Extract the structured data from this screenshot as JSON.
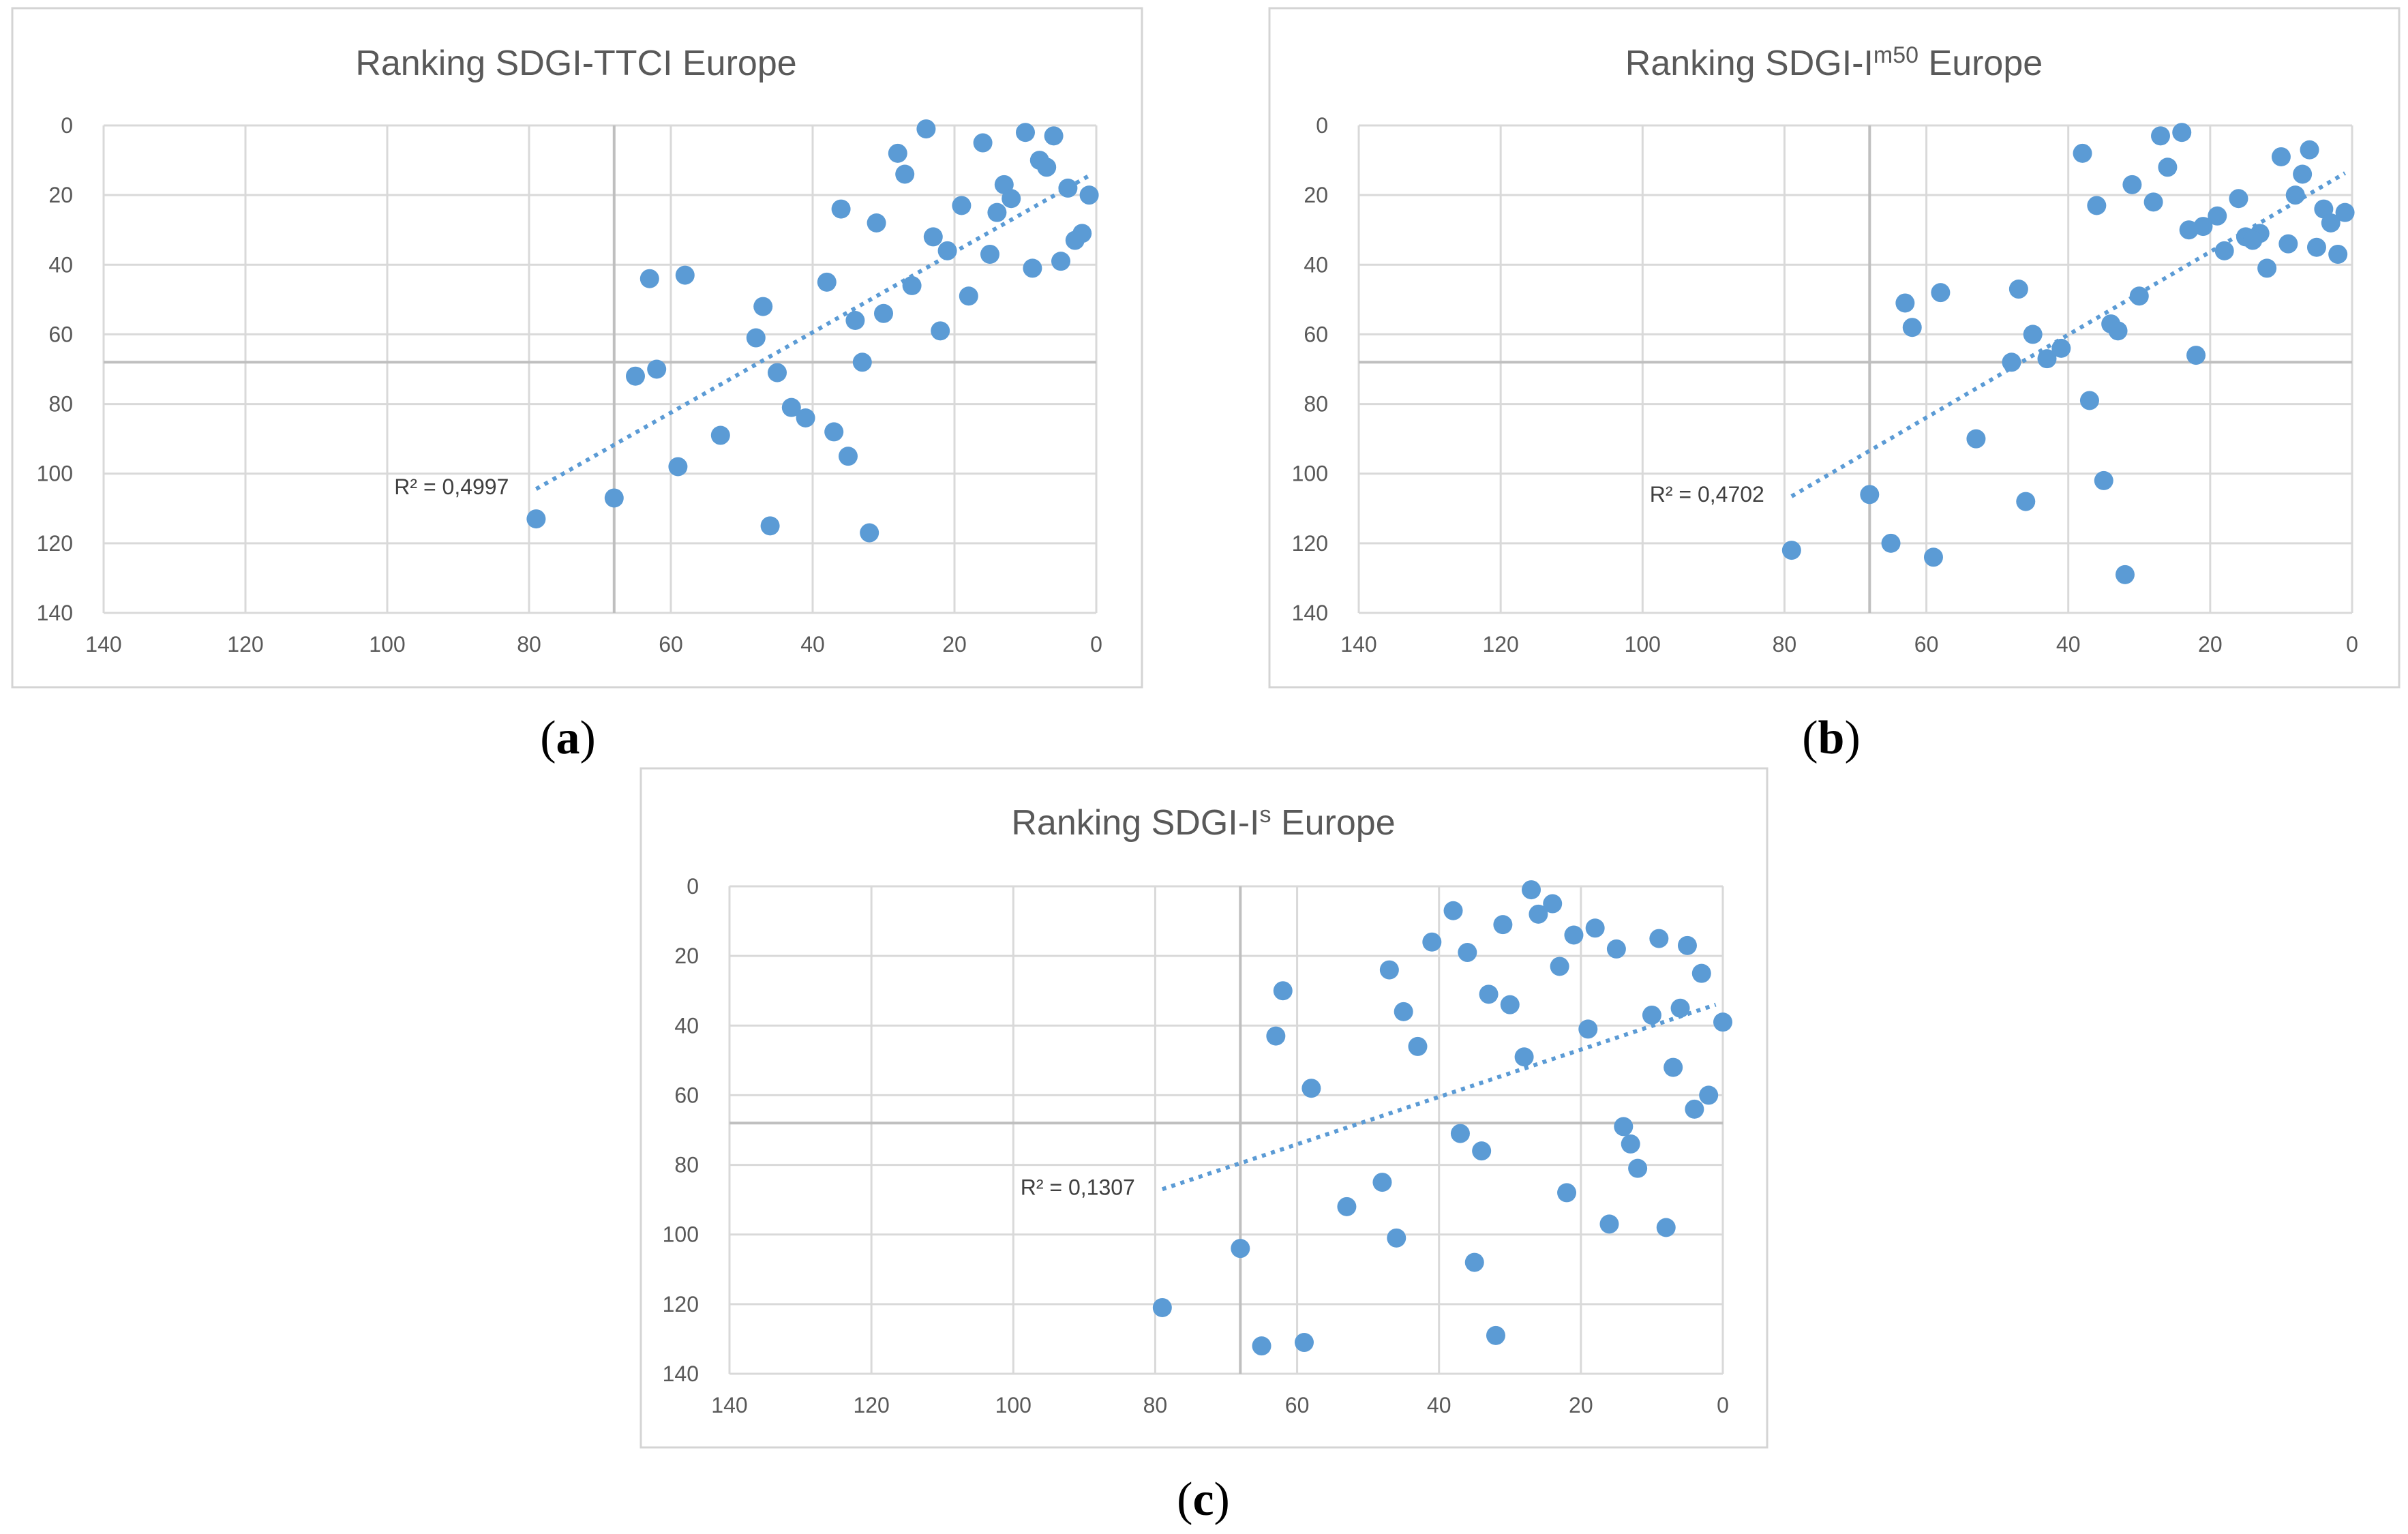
{
  "colors": {
    "marker": "#5b9bd5",
    "trend": "#5b9bd5",
    "frame": "#d4d4d4",
    "grid": "#d9d9d9",
    "refline": "#bfbfbf"
  },
  "chart_data": [
    {
      "id": "a",
      "type": "scatter",
      "panel_label": "a",
      "title_main": "Ranking SDGI-TTCI Europe",
      "title_base": "Ranking SDGI-TTCI Europe",
      "title_sup": "",
      "title_suffix": "",
      "x_reversed": true,
      "y_reversed": true,
      "xlim": [
        0,
        140
      ],
      "ylim": [
        0,
        140
      ],
      "xticks": [
        140,
        120,
        100,
        80,
        60,
        40,
        20,
        0
      ],
      "yticks": [
        0,
        20,
        40,
        60,
        80,
        100,
        120,
        140
      ],
      "reference_lines": {
        "x": 68,
        "y": 68
      },
      "trendline": {
        "type": "linear",
        "x_from": 79,
        "x_to": 1,
        "r2_label": "R² = 0,4997"
      },
      "points": [
        [
          24,
          1
        ],
        [
          10,
          2
        ],
        [
          6,
          3
        ],
        [
          16,
          5
        ],
        [
          28,
          8
        ],
        [
          8,
          10
        ],
        [
          7,
          12
        ],
        [
          27,
          14
        ],
        [
          13,
          17
        ],
        [
          4,
          18
        ],
        [
          1,
          20
        ],
        [
          12,
          21
        ],
        [
          19,
          23
        ],
        [
          36,
          24
        ],
        [
          14,
          25
        ],
        [
          31,
          28
        ],
        [
          23,
          32
        ],
        [
          2,
          31
        ],
        [
          3,
          33
        ],
        [
          21,
          36
        ],
        [
          15,
          37
        ],
        [
          5,
          39
        ],
        [
          9,
          41
        ],
        [
          58,
          43
        ],
        [
          63,
          44
        ],
        [
          38,
          45
        ],
        [
          26,
          46
        ],
        [
          18,
          49
        ],
        [
          47,
          52
        ],
        [
          30,
          54
        ],
        [
          34,
          56
        ],
        [
          22,
          59
        ],
        [
          48,
          61
        ],
        [
          33,
          68
        ],
        [
          62,
          70
        ],
        [
          45,
          71
        ],
        [
          65,
          72
        ],
        [
          43,
          81
        ],
        [
          41,
          84
        ],
        [
          37,
          88
        ],
        [
          53,
          89
        ],
        [
          35,
          95
        ],
        [
          59,
          98
        ],
        [
          68,
          107
        ],
        [
          79,
          113
        ],
        [
          46,
          115
        ],
        [
          32,
          117
        ]
      ]
    },
    {
      "id": "b",
      "type": "scatter",
      "panel_label": "b",
      "title_main": "",
      "title_base": "Ranking SDGI-I",
      "title_sup": "m50",
      "title_suffix": " Europe",
      "x_reversed": true,
      "y_reversed": true,
      "xlim": [
        0,
        140
      ],
      "ylim": [
        0,
        140
      ],
      "xticks": [
        140,
        120,
        100,
        80,
        60,
        40,
        20,
        0
      ],
      "yticks": [
        0,
        20,
        40,
        60,
        80,
        100,
        120,
        140
      ],
      "reference_lines": {
        "x": 68,
        "y": 68
      },
      "trendline": {
        "type": "linear",
        "x_from": 79,
        "x_to": 1,
        "r2_label": "R² = 0,4702"
      },
      "points": [
        [
          24,
          2
        ],
        [
          27,
          3
        ],
        [
          6,
          7
        ],
        [
          38,
          8
        ],
        [
          10,
          9
        ],
        [
          26,
          12
        ],
        [
          7,
          14
        ],
        [
          31,
          17
        ],
        [
          8,
          20
        ],
        [
          16,
          21
        ],
        [
          28,
          22
        ],
        [
          36,
          23
        ],
        [
          4,
          24
        ],
        [
          1,
          25
        ],
        [
          19,
          26
        ],
        [
          3,
          28
        ],
        [
          21,
          29
        ],
        [
          23,
          30
        ],
        [
          13,
          31
        ],
        [
          15,
          32
        ],
        [
          14,
          33
        ],
        [
          9,
          34
        ],
        [
          5,
          35
        ],
        [
          18,
          36
        ],
        [
          2,
          37
        ],
        [
          12,
          41
        ],
        [
          47,
          47
        ],
        [
          58,
          48
        ],
        [
          30,
          49
        ],
        [
          63,
          51
        ],
        [
          34,
          57
        ],
        [
          62,
          58
        ],
        [
          33,
          59
        ],
        [
          45,
          60
        ],
        [
          41,
          64
        ],
        [
          22,
          66
        ],
        [
          43,
          67
        ],
        [
          48,
          68
        ],
        [
          37,
          79
        ],
        [
          53,
          90
        ],
        [
          35,
          102
        ],
        [
          68,
          106
        ],
        [
          46,
          108
        ],
        [
          65,
          120
        ],
        [
          79,
          122
        ],
        [
          59,
          124
        ],
        [
          32,
          129
        ]
      ]
    },
    {
      "id": "c",
      "type": "scatter",
      "panel_label": "c",
      "title_main": "",
      "title_base": "Ranking SDGI-I",
      "title_sup": "s",
      "title_suffix": " Europe",
      "x_reversed": true,
      "y_reversed": true,
      "xlim": [
        0,
        140
      ],
      "ylim": [
        0,
        140
      ],
      "xticks": [
        140,
        120,
        100,
        80,
        60,
        40,
        20,
        0
      ],
      "yticks": [
        0,
        20,
        40,
        60,
        80,
        100,
        120,
        140
      ],
      "reference_lines": {
        "x": 68,
        "y": 68
      },
      "trendline": {
        "type": "linear",
        "x_from": 79,
        "x_to": 1,
        "r2_label": "R² = 0,1307"
      },
      "points": [
        [
          27,
          1
        ],
        [
          24,
          5
        ],
        [
          38,
          7
        ],
        [
          26,
          8
        ],
        [
          31,
          11
        ],
        [
          18,
          12
        ],
        [
          21,
          14
        ],
        [
          9,
          15
        ],
        [
          41,
          16
        ],
        [
          5,
          17
        ],
        [
          15,
          18
        ],
        [
          36,
          19
        ],
        [
          23,
          23
        ],
        [
          47,
          24
        ],
        [
          3,
          25
        ],
        [
          62,
          30
        ],
        [
          33,
          31
        ],
        [
          30,
          34
        ],
        [
          6,
          35
        ],
        [
          45,
          36
        ],
        [
          10,
          37
        ],
        [
          0,
          39
        ],
        [
          19,
          41
        ],
        [
          63,
          43
        ],
        [
          43,
          46
        ],
        [
          28,
          49
        ],
        [
          7,
          52
        ],
        [
          58,
          58
        ],
        [
          2,
          60
        ],
        [
          4,
          64
        ],
        [
          14,
          69
        ],
        [
          37,
          71
        ],
        [
          13,
          74
        ],
        [
          34,
          76
        ],
        [
          12,
          81
        ],
        [
          48,
          85
        ],
        [
          22,
          88
        ],
        [
          53,
          92
        ],
        [
          16,
          97
        ],
        [
          8,
          98
        ],
        [
          46,
          101
        ],
        [
          68,
          104
        ],
        [
          35,
          108
        ],
        [
          79,
          121
        ],
        [
          32,
          129
        ],
        [
          59,
          131
        ],
        [
          65,
          132
        ]
      ]
    }
  ]
}
